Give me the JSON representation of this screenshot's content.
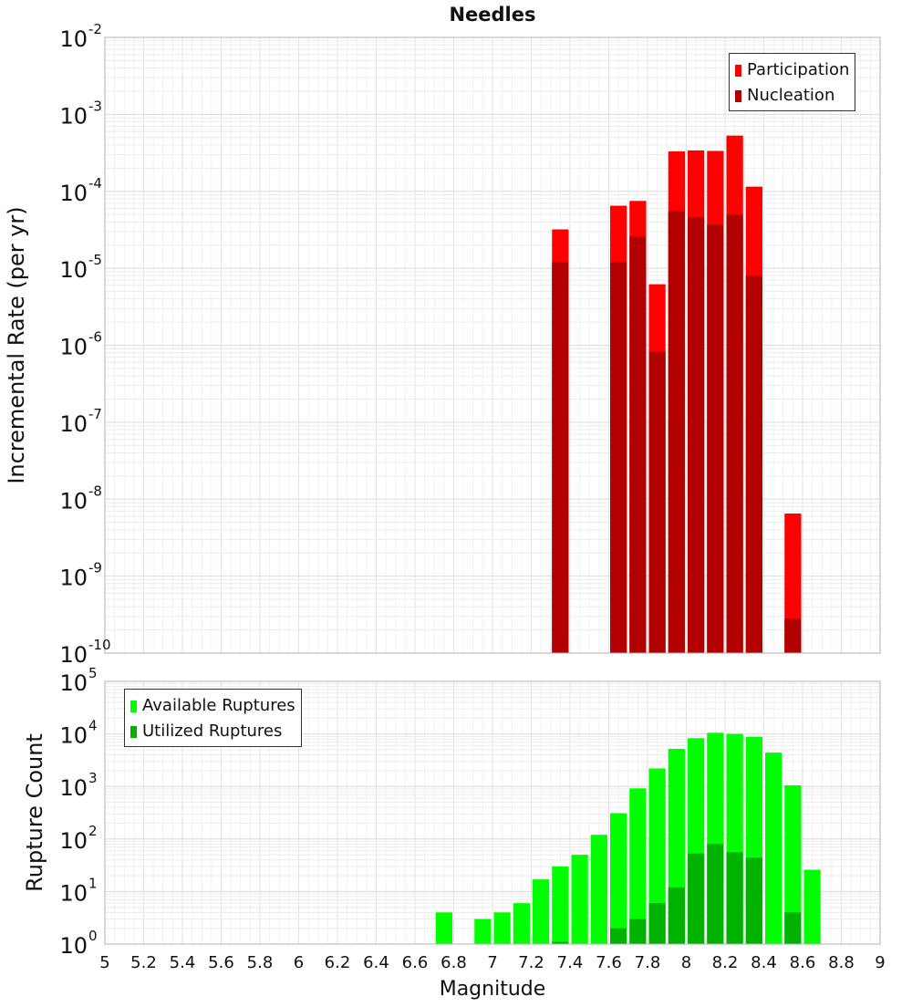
{
  "chart_data": [
    {
      "type": "bar",
      "title": "Needles",
      "ylabel": "Incremental Rate (per yr)",
      "xlabel": "",
      "ylim": [
        1e-10,
        0.01
      ],
      "ytick_exponents": [
        -10,
        -9,
        -8,
        -7,
        -6,
        -5,
        -4,
        -3,
        -2
      ],
      "xlim": [
        5,
        9
      ],
      "legend_position": "top-right",
      "series": [
        {
          "name": "Participation",
          "color": "#ff0000",
          "x": [
            7.35,
            7.65,
            7.75,
            7.85,
            7.95,
            8.05,
            8.15,
            8.25,
            8.35,
            8.55
          ],
          "values": [
            3.2e-05,
            6.5e-05,
            7.5e-05,
            6.2e-06,
            0.00033,
            0.00034,
            0.000335,
            0.00053,
            0.000115,
            6.5e-09
          ]
        },
        {
          "name": "Nucleation",
          "color": "#b20000",
          "x": [
            7.35,
            7.65,
            7.75,
            7.85,
            7.95,
            8.05,
            8.15,
            8.25,
            8.35,
            8.55
          ],
          "values": [
            1.2e-05,
            1.2e-05,
            2.6e-05,
            8.3e-07,
            5.5e-05,
            4.6e-05,
            3.7e-05,
            5e-05,
            8e-06,
            2.8e-10
          ]
        }
      ]
    },
    {
      "type": "bar",
      "title": "",
      "ylabel": "Rupture Count",
      "xlabel": "Magnitude",
      "ylim": [
        1,
        100000.0
      ],
      "ytick_exponents": [
        0,
        1,
        2,
        3,
        4,
        5
      ],
      "xlim": [
        5,
        9
      ],
      "xticks": [
        "5",
        "5.2",
        "5.4",
        "5.6",
        "5.8",
        "6",
        "6.2",
        "6.4",
        "6.6",
        "6.8",
        "7",
        "7.2",
        "7.4",
        "7.6",
        "7.8",
        "8",
        "8.2",
        "8.4",
        "8.6",
        "8.8",
        "9"
      ],
      "legend_position": "top-left",
      "series": [
        {
          "name": "Available Ruptures",
          "color": "#00ff00",
          "x": [
            6.75,
            6.95,
            7.05,
            7.15,
            7.25,
            7.35,
            7.45,
            7.55,
            7.65,
            7.75,
            7.85,
            7.95,
            8.05,
            8.15,
            8.25,
            8.35,
            8.45,
            8.55,
            8.65
          ],
          "values": [
            4,
            3,
            4,
            6,
            17,
            30,
            50,
            120,
            310,
            920,
            2200,
            5200,
            8300,
            10500,
            10000,
            8800,
            4400,
            1050,
            26
          ]
        },
        {
          "name": "Utilized Ruptures",
          "color": "#00b200",
          "x": [
            7.35,
            7.65,
            7.75,
            7.85,
            7.95,
            8.05,
            8.15,
            8.25,
            8.35,
            8.55
          ],
          "values": [
            1.1,
            2,
            3,
            6,
            12,
            53,
            80,
            56,
            44,
            4
          ]
        }
      ]
    }
  ]
}
